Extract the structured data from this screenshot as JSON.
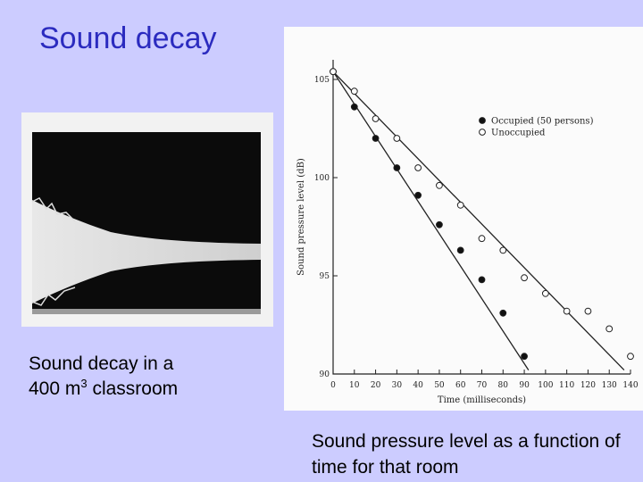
{
  "slide": {
    "title": "Sound decay",
    "left_caption_line1": "Sound decay in a",
    "left_caption_prefix": "400 m",
    "left_caption_sup": "3",
    "left_caption_suffix": " classroom",
    "right_caption": "Sound pressure level as a function of time for that room"
  },
  "colors": {
    "background": "#ccccff",
    "title": "#2b2bbf",
    "occupied_marker": "#111111",
    "unoccupied_marker": "#ffffff"
  },
  "chart_data": {
    "type": "scatter",
    "title": "",
    "xlabel": "Time (milliseconds)",
    "ylabel": "Sound pressure level (dB)",
    "xlim": [
      0,
      140
    ],
    "ylim": [
      90,
      106
    ],
    "x_ticks": [
      0,
      10,
      20,
      30,
      40,
      50,
      60,
      70,
      80,
      90,
      100,
      110,
      120,
      130,
      140
    ],
    "y_ticks": [
      90,
      95,
      100,
      105
    ],
    "legend_position": "top-right",
    "grid": false,
    "series": [
      {
        "name": "Occupied (50 persons)",
        "marker": "filled-circle",
        "x": [
          0,
          10,
          20,
          30,
          40,
          50,
          60,
          70,
          80,
          90
        ],
        "y": [
          105.4,
          103.6,
          102.0,
          100.5,
          99.1,
          97.6,
          96.3,
          94.8,
          93.1,
          90.9
        ],
        "fit_line": {
          "from": [
            0,
            105.4
          ],
          "to": [
            92,
            90.2
          ]
        }
      },
      {
        "name": "Unoccupied",
        "marker": "open-circle",
        "x": [
          0,
          10,
          20,
          30,
          40,
          50,
          60,
          70,
          80,
          90,
          100,
          110,
          120,
          130,
          140
        ],
        "y": [
          105.4,
          104.4,
          103.0,
          102.0,
          100.5,
          99.6,
          98.6,
          96.9,
          96.3,
          94.9,
          94.1,
          93.2,
          93.2,
          92.3,
          90.9
        ],
        "fit_line": {
          "from": [
            0,
            105.4
          ],
          "to": [
            137,
            90.2
          ]
        }
      }
    ]
  }
}
